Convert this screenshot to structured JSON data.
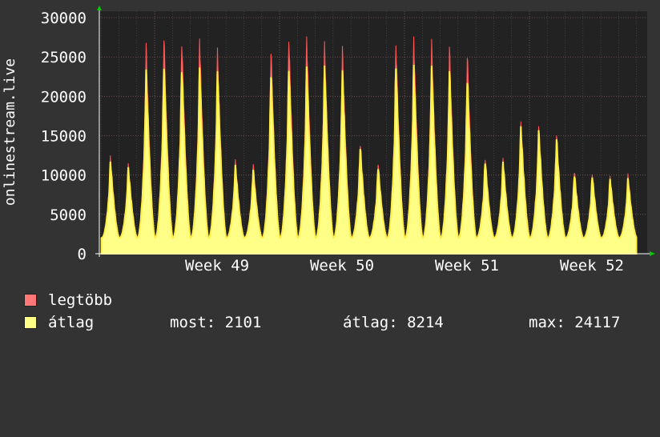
{
  "chart_data": {
    "type": "area",
    "ylabel": "onlinestream.live",
    "ylim": [
      0,
      30000
    ],
    "yticks": [
      0,
      5000,
      10000,
      15000,
      20000,
      25000,
      30000
    ],
    "xticks": [
      "Week 49",
      "Week 50",
      "Week 51",
      "Week 52"
    ],
    "grid": true,
    "series": [
      {
        "name": "legtöbb",
        "color": "#ff7777",
        "daily_peaks": [
          12500,
          11500,
          26800,
          27800,
          27300,
          27500,
          26200,
          12000,
          11400,
          26300,
          27700,
          27600,
          27000,
          26400,
          13900,
          11700,
          26900,
          27600,
          27300,
          26300,
          25600,
          12300,
          12200,
          16800,
          16200,
          15100,
          10600,
          10300,
          9900,
          10200
        ]
      },
      {
        "name": "átlag",
        "color": "#ffff88",
        "daily_peaks": [
          11700,
          11000,
          23400,
          24100,
          23900,
          23800,
          23200,
          11300,
          10700,
          23200,
          23900,
          23800,
          23900,
          23300,
          13500,
          11100,
          23900,
          24000,
          23900,
          23200,
          22300,
          11800,
          11700,
          16200,
          15700,
          14600,
          10100,
          9900,
          9500,
          9600
        ]
      }
    ],
    "trough": 2000
  },
  "legend": {
    "max_label": "legtöbb",
    "avg_label": "átlag",
    "now_stat": "most: 2101",
    "avg_stat": "átlag: 8214",
    "max_stat": "max: 24117"
  },
  "colors": {
    "background": "#333333",
    "plot_background": "#222222",
    "grid": "#555555",
    "max_fill": "#ff7777",
    "avg_fill": "#ffff88",
    "avg_line": "#ffee44",
    "arrow": "#00cc00"
  }
}
